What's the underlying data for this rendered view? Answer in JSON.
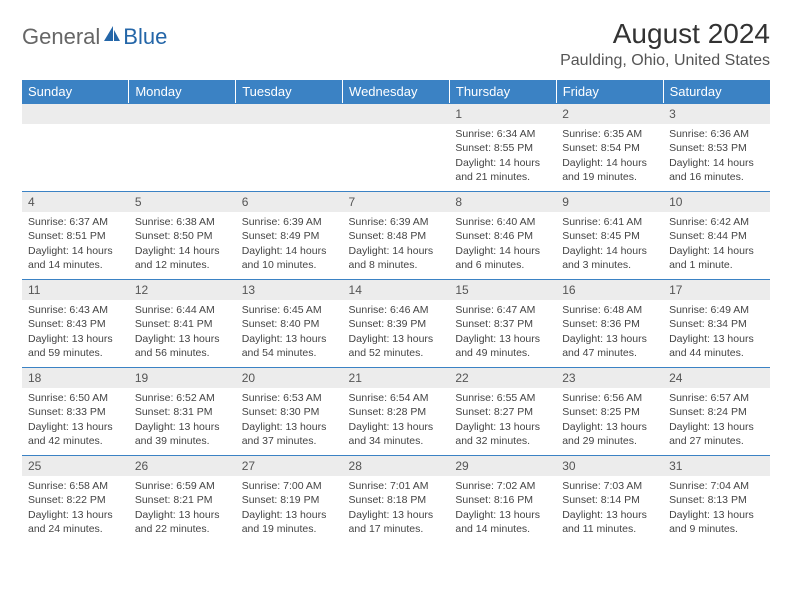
{
  "logo": {
    "part1": "General",
    "part2": "Blue"
  },
  "title": "August 2024",
  "location": "Paulding, Ohio, United States",
  "colors": {
    "header_bg": "#3b82c4",
    "header_text": "#ffffff",
    "daynum_bg": "#ececec",
    "border": "#3b82c4",
    "logo_blue": "#2466a8"
  },
  "days_of_week": [
    "Sunday",
    "Monday",
    "Tuesday",
    "Wednesday",
    "Thursday",
    "Friday",
    "Saturday"
  ],
  "weeks": [
    [
      {
        "empty": true
      },
      {
        "empty": true
      },
      {
        "empty": true
      },
      {
        "empty": true
      },
      {
        "n": "1",
        "sr": "6:34 AM",
        "ss": "8:55 PM",
        "dl": "14 hours and 21 minutes."
      },
      {
        "n": "2",
        "sr": "6:35 AM",
        "ss": "8:54 PM",
        "dl": "14 hours and 19 minutes."
      },
      {
        "n": "3",
        "sr": "6:36 AM",
        "ss": "8:53 PM",
        "dl": "14 hours and 16 minutes."
      }
    ],
    [
      {
        "n": "4",
        "sr": "6:37 AM",
        "ss": "8:51 PM",
        "dl": "14 hours and 14 minutes."
      },
      {
        "n": "5",
        "sr": "6:38 AM",
        "ss": "8:50 PM",
        "dl": "14 hours and 12 minutes."
      },
      {
        "n": "6",
        "sr": "6:39 AM",
        "ss": "8:49 PM",
        "dl": "14 hours and 10 minutes."
      },
      {
        "n": "7",
        "sr": "6:39 AM",
        "ss": "8:48 PM",
        "dl": "14 hours and 8 minutes."
      },
      {
        "n": "8",
        "sr": "6:40 AM",
        "ss": "8:46 PM",
        "dl": "14 hours and 6 minutes."
      },
      {
        "n": "9",
        "sr": "6:41 AM",
        "ss": "8:45 PM",
        "dl": "14 hours and 3 minutes."
      },
      {
        "n": "10",
        "sr": "6:42 AM",
        "ss": "8:44 PM",
        "dl": "14 hours and 1 minute."
      }
    ],
    [
      {
        "n": "11",
        "sr": "6:43 AM",
        "ss": "8:43 PM",
        "dl": "13 hours and 59 minutes."
      },
      {
        "n": "12",
        "sr": "6:44 AM",
        "ss": "8:41 PM",
        "dl": "13 hours and 56 minutes."
      },
      {
        "n": "13",
        "sr": "6:45 AM",
        "ss": "8:40 PM",
        "dl": "13 hours and 54 minutes."
      },
      {
        "n": "14",
        "sr": "6:46 AM",
        "ss": "8:39 PM",
        "dl": "13 hours and 52 minutes."
      },
      {
        "n": "15",
        "sr": "6:47 AM",
        "ss": "8:37 PM",
        "dl": "13 hours and 49 minutes."
      },
      {
        "n": "16",
        "sr": "6:48 AM",
        "ss": "8:36 PM",
        "dl": "13 hours and 47 minutes."
      },
      {
        "n": "17",
        "sr": "6:49 AM",
        "ss": "8:34 PM",
        "dl": "13 hours and 44 minutes."
      }
    ],
    [
      {
        "n": "18",
        "sr": "6:50 AM",
        "ss": "8:33 PM",
        "dl": "13 hours and 42 minutes."
      },
      {
        "n": "19",
        "sr": "6:52 AM",
        "ss": "8:31 PM",
        "dl": "13 hours and 39 minutes."
      },
      {
        "n": "20",
        "sr": "6:53 AM",
        "ss": "8:30 PM",
        "dl": "13 hours and 37 minutes."
      },
      {
        "n": "21",
        "sr": "6:54 AM",
        "ss": "8:28 PM",
        "dl": "13 hours and 34 minutes."
      },
      {
        "n": "22",
        "sr": "6:55 AM",
        "ss": "8:27 PM",
        "dl": "13 hours and 32 minutes."
      },
      {
        "n": "23",
        "sr": "6:56 AM",
        "ss": "8:25 PM",
        "dl": "13 hours and 29 minutes."
      },
      {
        "n": "24",
        "sr": "6:57 AM",
        "ss": "8:24 PM",
        "dl": "13 hours and 27 minutes."
      }
    ],
    [
      {
        "n": "25",
        "sr": "6:58 AM",
        "ss": "8:22 PM",
        "dl": "13 hours and 24 minutes."
      },
      {
        "n": "26",
        "sr": "6:59 AM",
        "ss": "8:21 PM",
        "dl": "13 hours and 22 minutes."
      },
      {
        "n": "27",
        "sr": "7:00 AM",
        "ss": "8:19 PM",
        "dl": "13 hours and 19 minutes."
      },
      {
        "n": "28",
        "sr": "7:01 AM",
        "ss": "8:18 PM",
        "dl": "13 hours and 17 minutes."
      },
      {
        "n": "29",
        "sr": "7:02 AM",
        "ss": "8:16 PM",
        "dl": "13 hours and 14 minutes."
      },
      {
        "n": "30",
        "sr": "7:03 AM",
        "ss": "8:14 PM",
        "dl": "13 hours and 11 minutes."
      },
      {
        "n": "31",
        "sr": "7:04 AM",
        "ss": "8:13 PM",
        "dl": "13 hours and 9 minutes."
      }
    ]
  ],
  "labels": {
    "sunrise": "Sunrise: ",
    "sunset": "Sunset: ",
    "daylight": "Daylight: "
  }
}
